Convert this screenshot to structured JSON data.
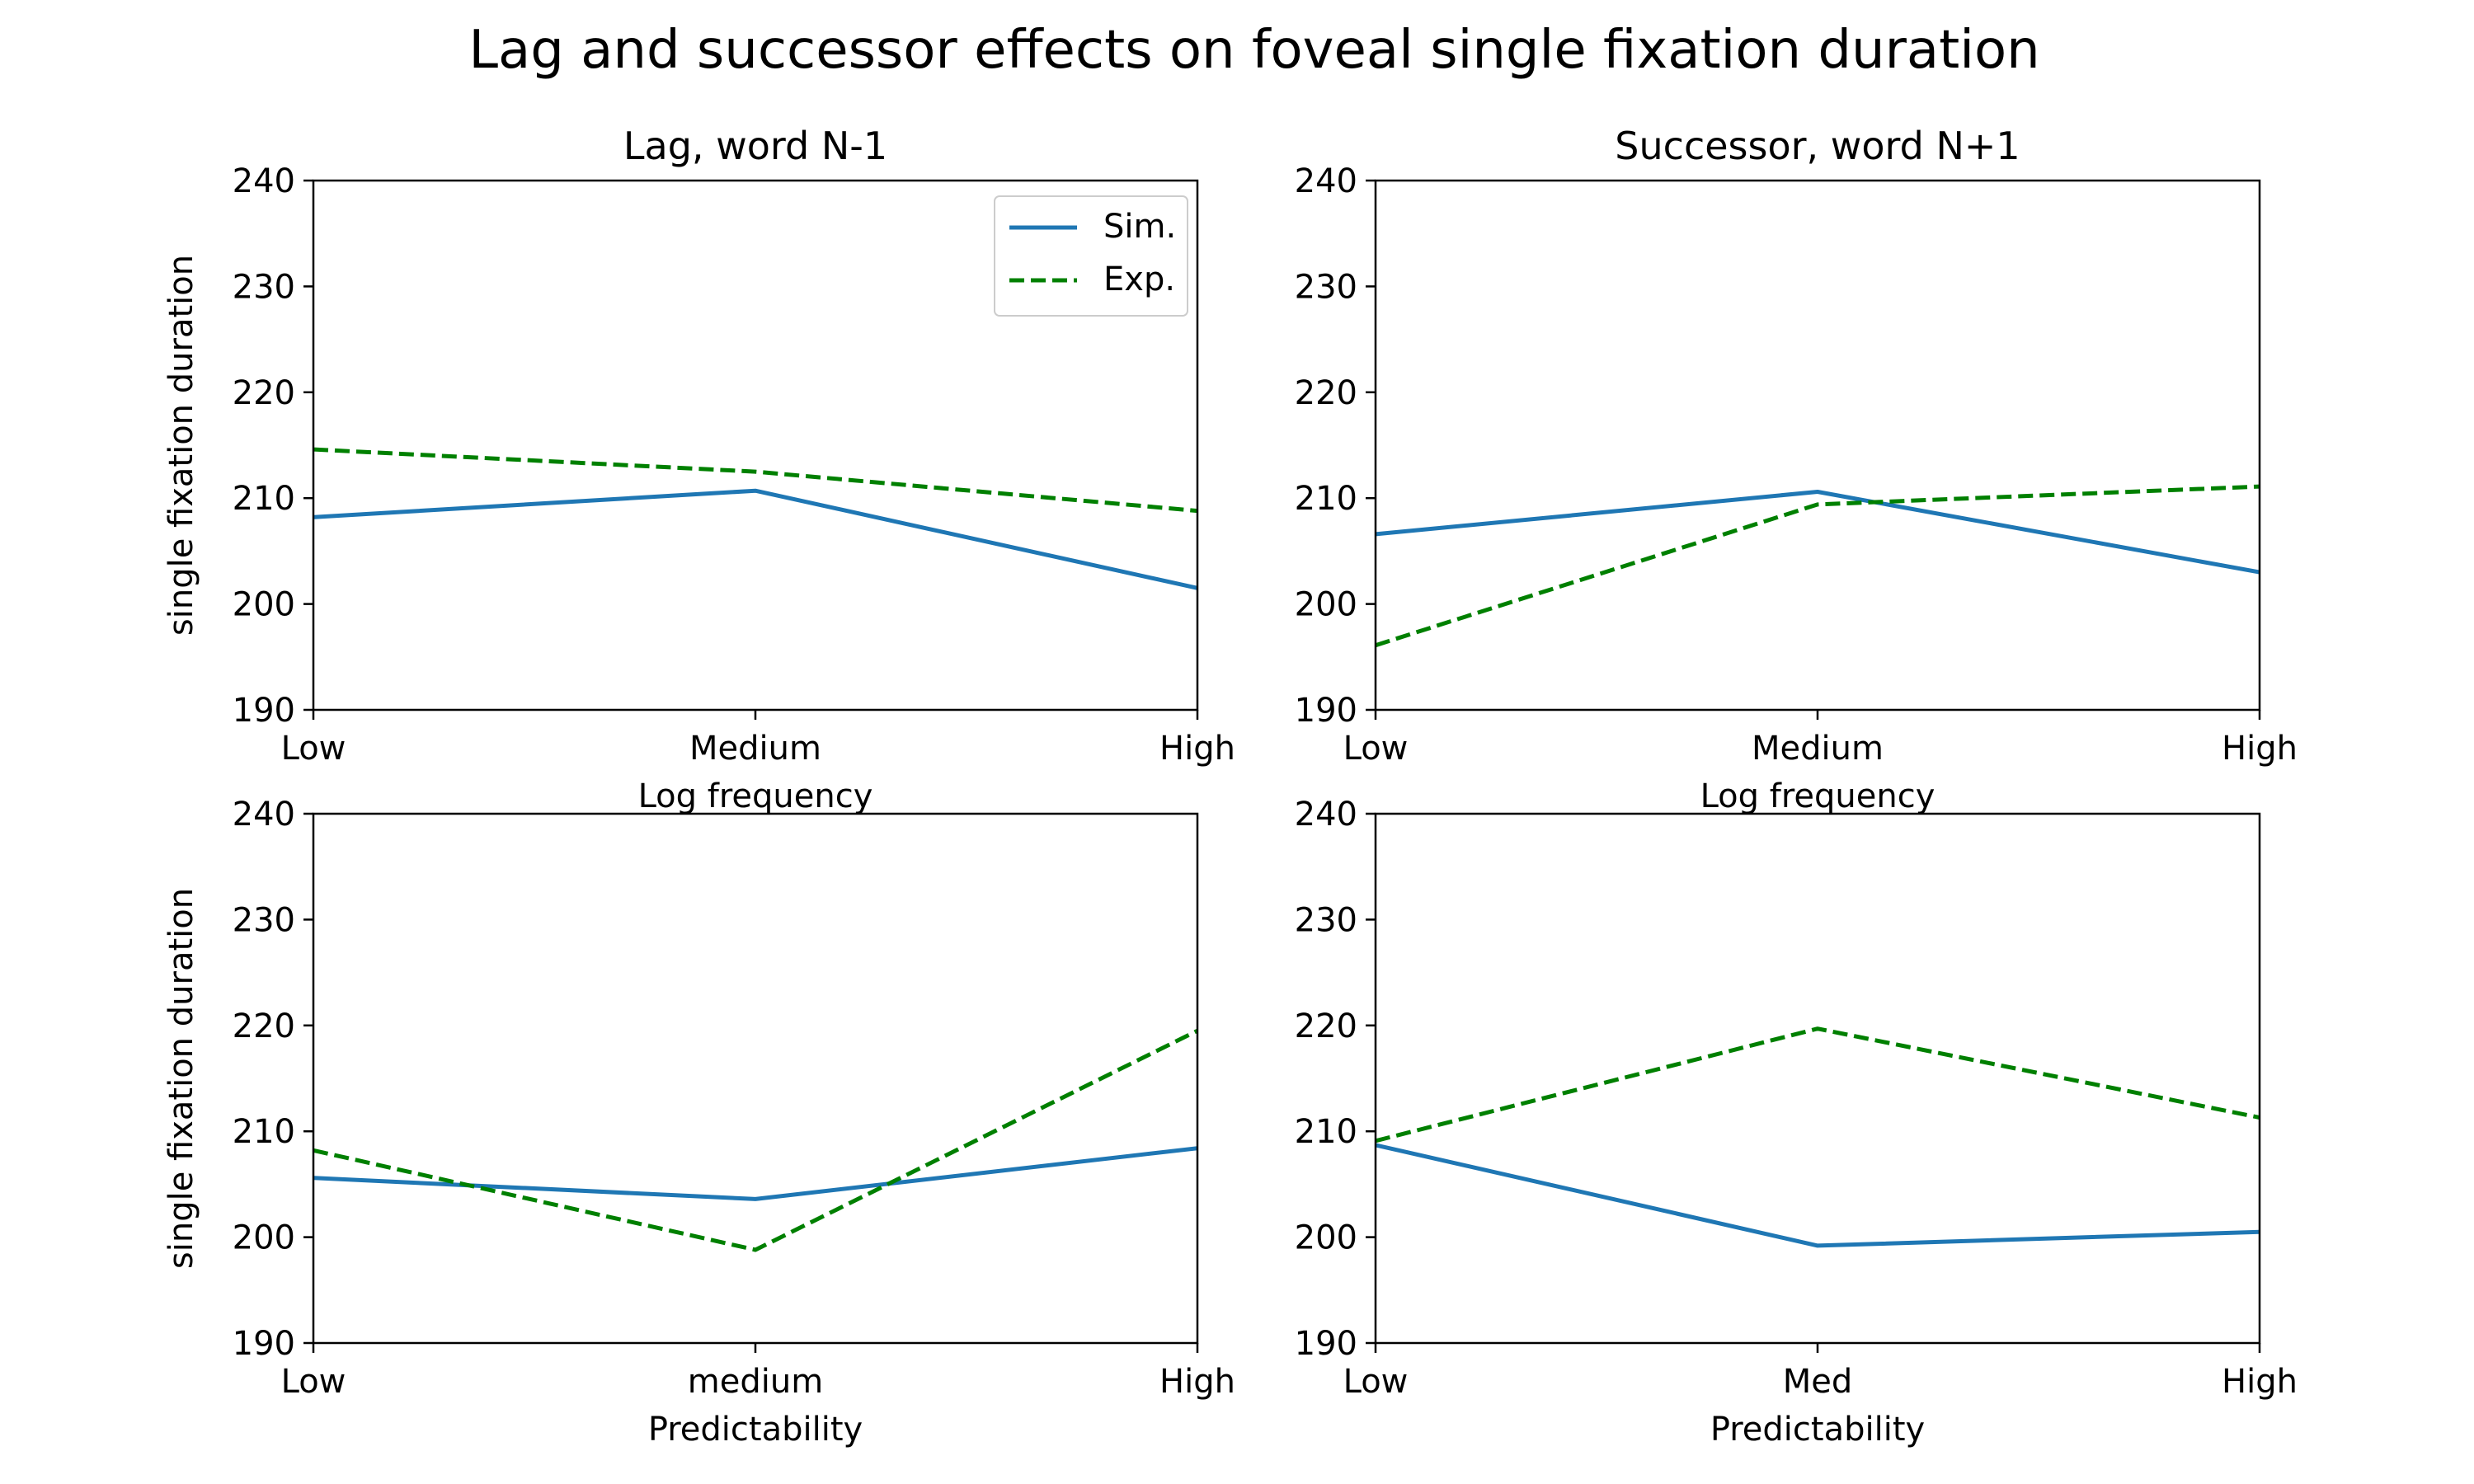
{
  "figure": {
    "title": "Lag and successor effects on foveal single fixation duration"
  },
  "colors": {
    "sim": "#1f77b4",
    "exp": "#008000",
    "axis": "#000000",
    "background": "#ffffff"
  },
  "legend": {
    "placement": "upper-right of first subplot",
    "entries": [
      {
        "label": "Sim.",
        "style": "solid",
        "color": "#1f77b4"
      },
      {
        "label": "Exp.",
        "style": "dashed",
        "color": "#008000"
      }
    ]
  },
  "chart_data": [
    {
      "type": "line",
      "title": "Lag, word N-1",
      "xlabel": "Log frequency",
      "ylabel": "single fixation duration",
      "categories": [
        "Low",
        "Medium",
        "High"
      ],
      "ylim": [
        190,
        240
      ],
      "yticks": [
        190,
        200,
        210,
        220,
        230,
        240
      ],
      "grid": false,
      "legend": true,
      "series": [
        {
          "name": "Sim.",
          "values": [
            208.2,
            210.7,
            201.5
          ]
        },
        {
          "name": "Exp.",
          "values": [
            214.6,
            212.5,
            208.8
          ]
        }
      ]
    },
    {
      "type": "line",
      "title": "Successor, word N+1",
      "xlabel": "Log frequency",
      "ylabel": "",
      "categories": [
        "Low",
        "Medium",
        "High"
      ],
      "ylim": [
        190,
        240
      ],
      "yticks": [
        190,
        200,
        210,
        220,
        230,
        240
      ],
      "grid": false,
      "legend": false,
      "series": [
        {
          "name": "Sim.",
          "values": [
            206.6,
            210.6,
            203.0
          ]
        },
        {
          "name": "Exp.",
          "values": [
            196.1,
            209.4,
            211.1
          ]
        }
      ]
    },
    {
      "type": "line",
      "title": "",
      "xlabel": "Predictability",
      "ylabel": "single fixation duration",
      "categories": [
        "Low",
        "medium",
        "High"
      ],
      "ylim": [
        190,
        240
      ],
      "yticks": [
        190,
        200,
        210,
        220,
        230,
        240
      ],
      "grid": false,
      "legend": false,
      "series": [
        {
          "name": "Sim.",
          "values": [
            205.6,
            203.6,
            208.4
          ]
        },
        {
          "name": "Exp.",
          "values": [
            208.2,
            198.8,
            219.5
          ]
        }
      ]
    },
    {
      "type": "line",
      "title": "",
      "xlabel": "Predictability",
      "ylabel": "",
      "categories": [
        "Low",
        "Med",
        "High"
      ],
      "ylim": [
        190,
        240
      ],
      "yticks": [
        190,
        200,
        210,
        220,
        230,
        240
      ],
      "grid": false,
      "legend": false,
      "series": [
        {
          "name": "Sim.",
          "values": [
            208.7,
            199.2,
            200.5
          ]
        },
        {
          "name": "Exp.",
          "values": [
            209.1,
            219.7,
            211.3
          ]
        }
      ]
    }
  ]
}
